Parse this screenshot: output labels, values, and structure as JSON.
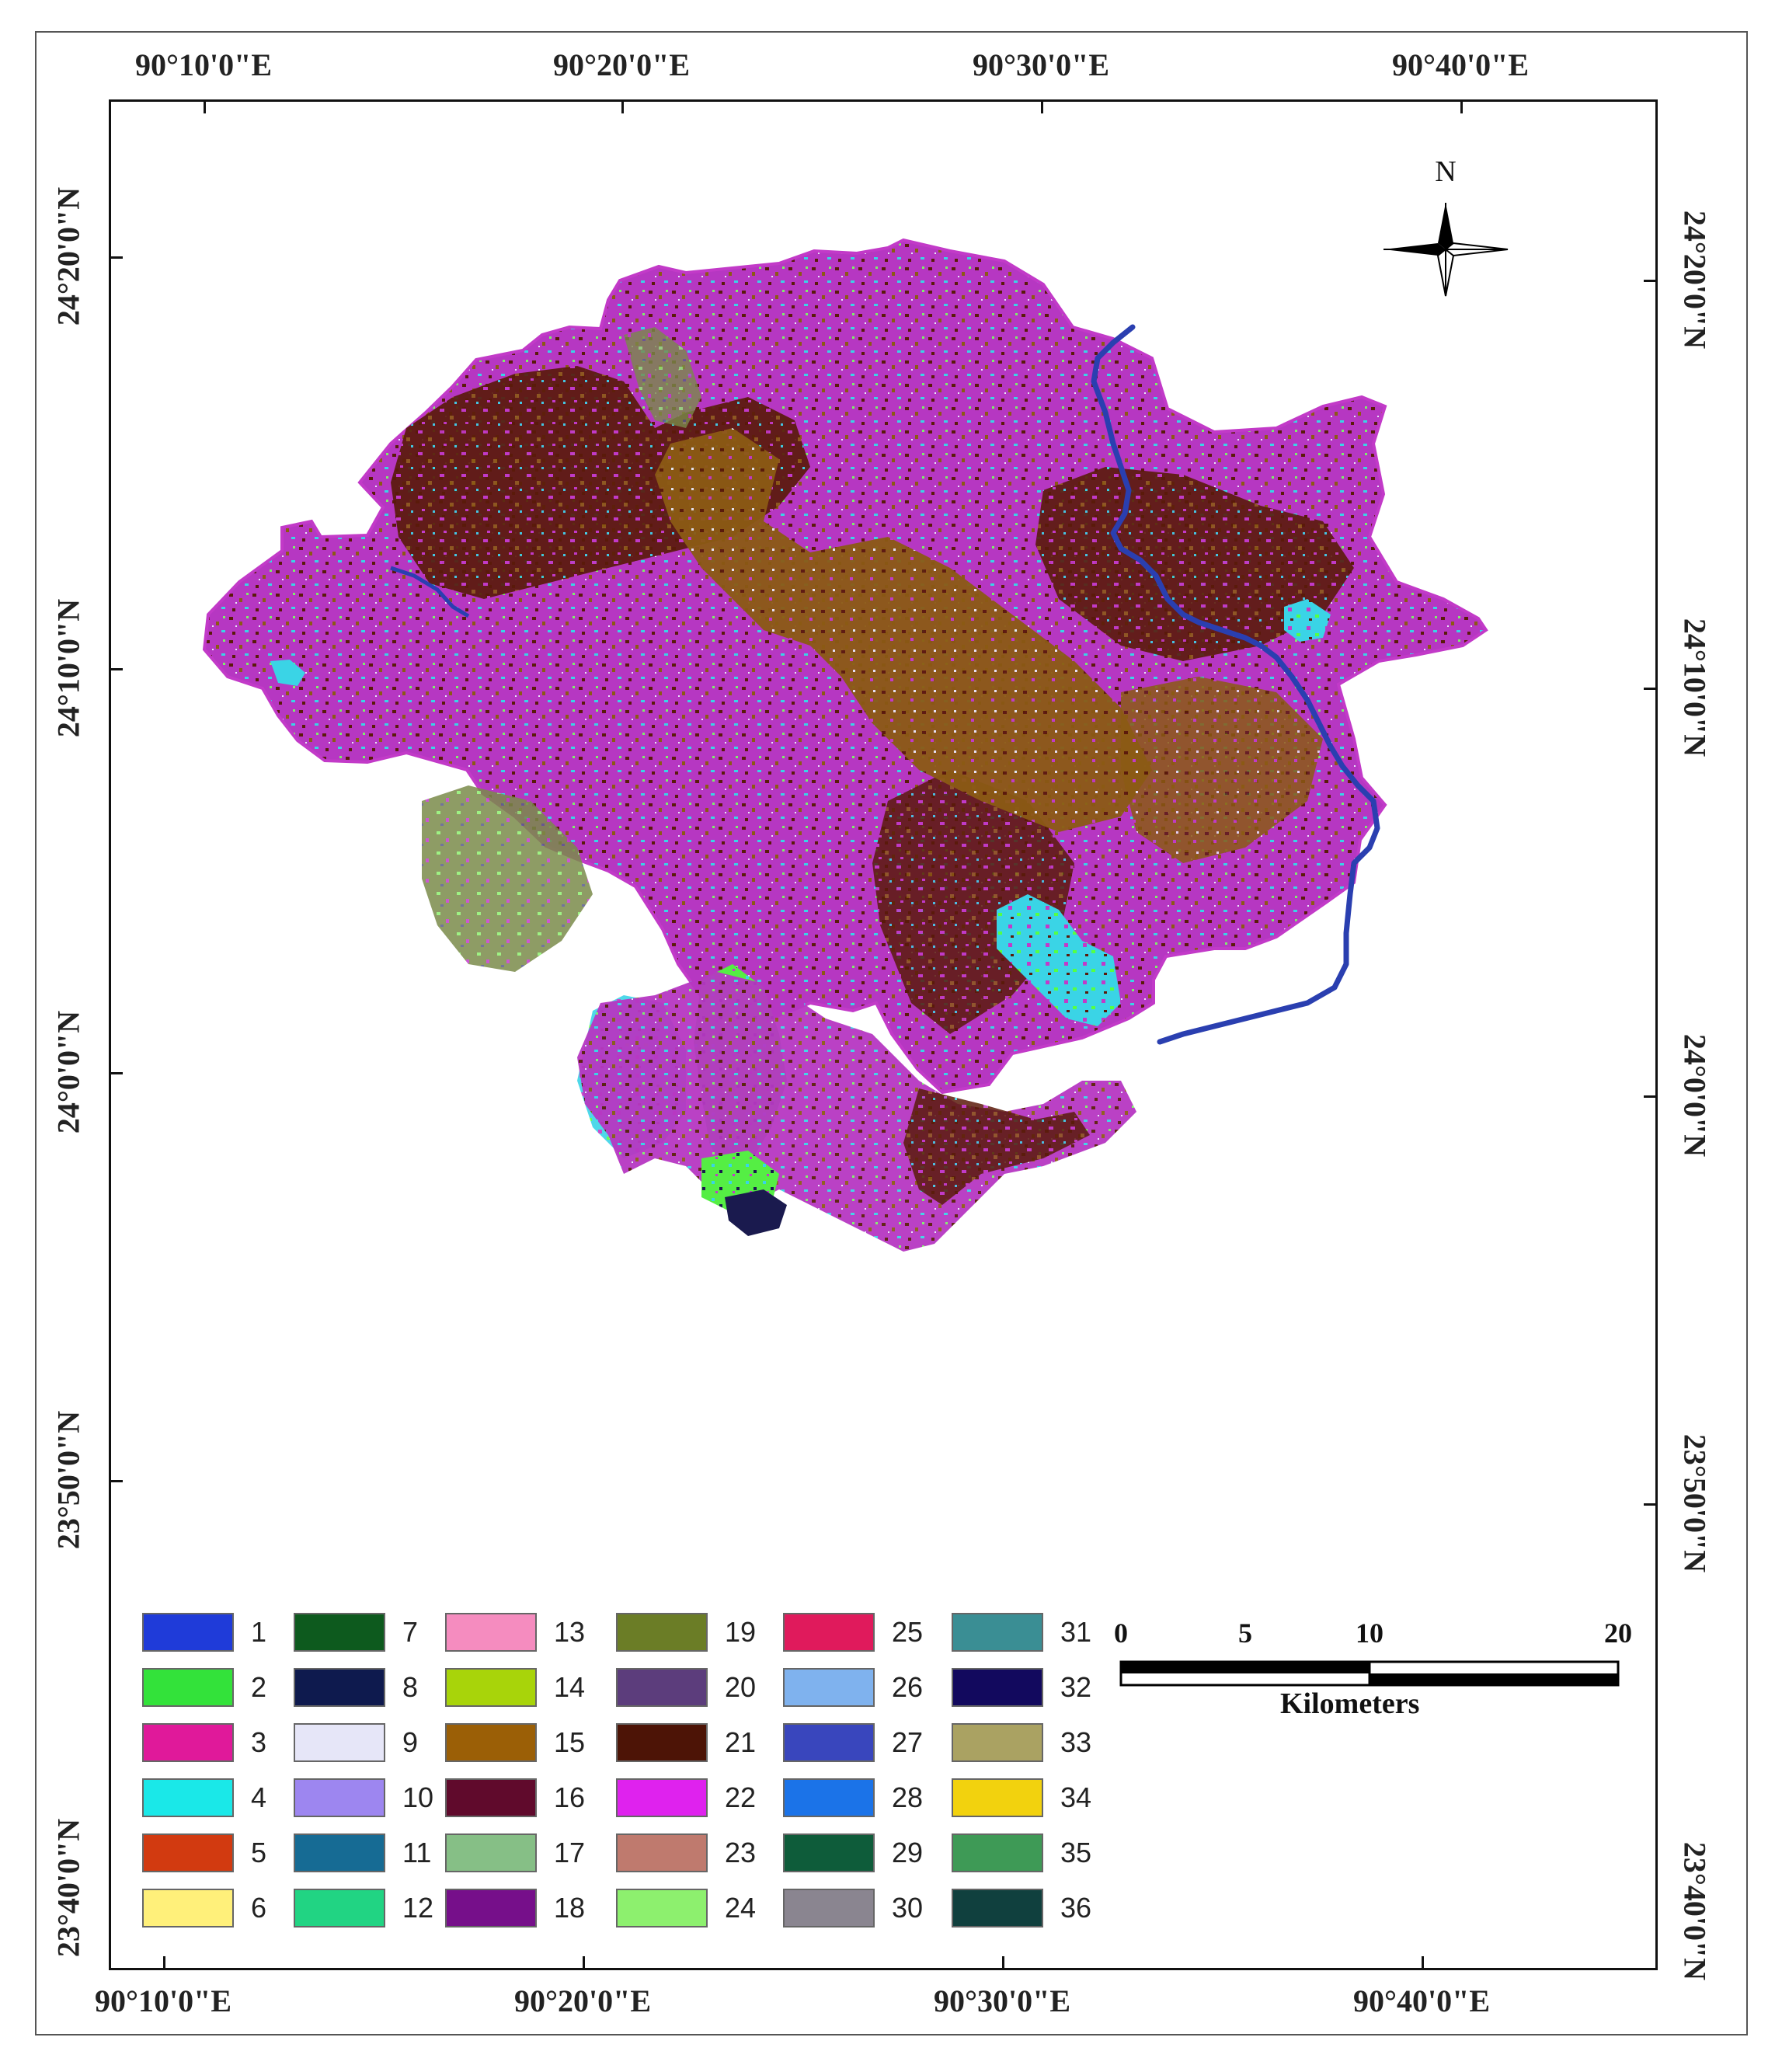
{
  "map": {
    "top_labels": [
      "90°10'0\"E",
      "90°20'0\"E",
      "90°30'0\"E",
      "90°40'0\"E"
    ],
    "bottom_labels": [
      "90°10'0\"E",
      "90°20'0\"E",
      "90°30'0\"E",
      "90°40'0\"E"
    ],
    "left_labels": [
      "24°20'0\"N",
      "24°10'0\"N",
      "24°0'0\"N",
      "23°50'0\"N",
      "23°40'0\"N"
    ],
    "right_labels": [
      "24°20'0\"N",
      "24°10'0\"N",
      "24°0'0\"N",
      "23°50'0\"N",
      "23°40'0\"N"
    ],
    "north_label": "N",
    "scale": {
      "ticks": [
        "0",
        "5",
        "10",
        "20"
      ],
      "unit": "Kilometers"
    },
    "river_color": "#2a3fb0",
    "dominant_colors": [
      "#c23ac8",
      "#5a1a0a",
      "#8b5a14",
      "#3ad4e6",
      "#55ff44"
    ]
  },
  "legend": [
    {
      "num": "1",
      "color": "#1f3bd9"
    },
    {
      "num": "2",
      "color": "#33e23a"
    },
    {
      "num": "3",
      "color": "#e0199a"
    },
    {
      "num": "4",
      "color": "#1ae8e8"
    },
    {
      "num": "5",
      "color": "#d23a10"
    },
    {
      "num": "6",
      "color": "#fff07a"
    },
    {
      "num": "7",
      "color": "#0d5a1e"
    },
    {
      "num": "8",
      "color": "#0e1a4e"
    },
    {
      "num": "9",
      "color": "#e6e6f8"
    },
    {
      "num": "10",
      "color": "#9d86f0"
    },
    {
      "num": "11",
      "color": "#166b94"
    },
    {
      "num": "12",
      "color": "#21d483"
    },
    {
      "num": "13",
      "color": "#f58cbf"
    },
    {
      "num": "14",
      "color": "#a8d40a"
    },
    {
      "num": "15",
      "color": "#9b5f06"
    },
    {
      "num": "16",
      "color": "#600a2c"
    },
    {
      "num": "17",
      "color": "#86bf86"
    },
    {
      "num": "18",
      "color": "#760f8a"
    },
    {
      "num": "19",
      "color": "#6b7d26"
    },
    {
      "num": "20",
      "color": "#5c3d7c"
    },
    {
      "num": "21",
      "color": "#4d1406"
    },
    {
      "num": "22",
      "color": "#df22ee"
    },
    {
      "num": "23",
      "color": "#bf7a6e"
    },
    {
      "num": "24",
      "color": "#8df06e"
    },
    {
      "num": "25",
      "color": "#e01a5c"
    },
    {
      "num": "26",
      "color": "#7fb2ee"
    },
    {
      "num": "27",
      "color": "#3946bd"
    },
    {
      "num": "28",
      "color": "#1b73e8"
    },
    {
      "num": "29",
      "color": "#0e5c3a"
    },
    {
      "num": "30",
      "color": "#8a8590"
    },
    {
      "num": "31",
      "color": "#3a8e94"
    },
    {
      "num": "32",
      "color": "#12095e"
    },
    {
      "num": "33",
      "color": "#aaa262"
    },
    {
      "num": "34",
      "color": "#f2d20e"
    },
    {
      "num": "35",
      "color": "#3e9a56"
    },
    {
      "num": "36",
      "color": "#10403e"
    }
  ]
}
